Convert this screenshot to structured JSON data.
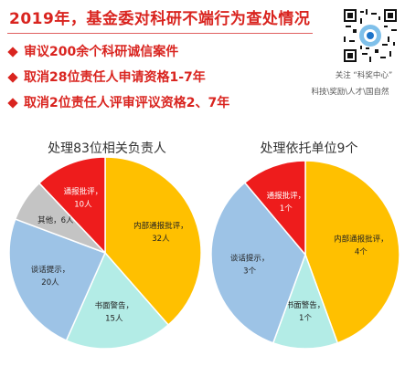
{
  "header": {
    "title": "2019年，基金委对科研不端行为查处情况",
    "bullets": [
      "审议200余个科研诚信案件",
      "取消28位责任人申请资格1-7年",
      "取消2位责任人评审评议资格2、7年"
    ],
    "follow_text": "关注 “科奖中心”",
    "tags_text": "科技\\奖励\\人才\\国自然"
  },
  "colors": {
    "title_red": "#d9241f",
    "red": "#ee1c1c",
    "gray": "#c4c4c4",
    "blue": "#9dc3e6",
    "teal": "#b3ece6",
    "orange": "#ffc000"
  },
  "chart_data": [
    {
      "type": "pie",
      "title": "处理83位相关负责人",
      "slices": [
        {
          "label": "内部通报批评，",
          "value_text": "32人",
          "value": 32,
          "color": "#ffc000"
        },
        {
          "label": "书面警告，",
          "value_text": "15人",
          "value": 15,
          "color": "#b3ece6"
        },
        {
          "label": "谈话提示，",
          "value_text": "20人",
          "value": 20,
          "color": "#9dc3e6"
        },
        {
          "label": "其他，6人",
          "value_text": "",
          "value": 6,
          "color": "#c4c4c4"
        },
        {
          "label": "通报批评，",
          "value_text": "10人",
          "value": 10,
          "color": "#ee1c1c"
        }
      ]
    },
    {
      "type": "pie",
      "title": "处理依托单位9个",
      "slices": [
        {
          "label": "内部通报批评，",
          "value_text": "4个",
          "value": 4,
          "color": "#ffc000"
        },
        {
          "label": "书面警告，",
          "value_text": "1个",
          "value": 1,
          "color": "#b3ece6"
        },
        {
          "label": "谈话提示，",
          "value_text": "3个",
          "value": 3,
          "color": "#9dc3e6"
        },
        {
          "label": "通报批评，",
          "value_text": "1个",
          "value": 1,
          "color": "#ee1c1c"
        }
      ]
    }
  ]
}
